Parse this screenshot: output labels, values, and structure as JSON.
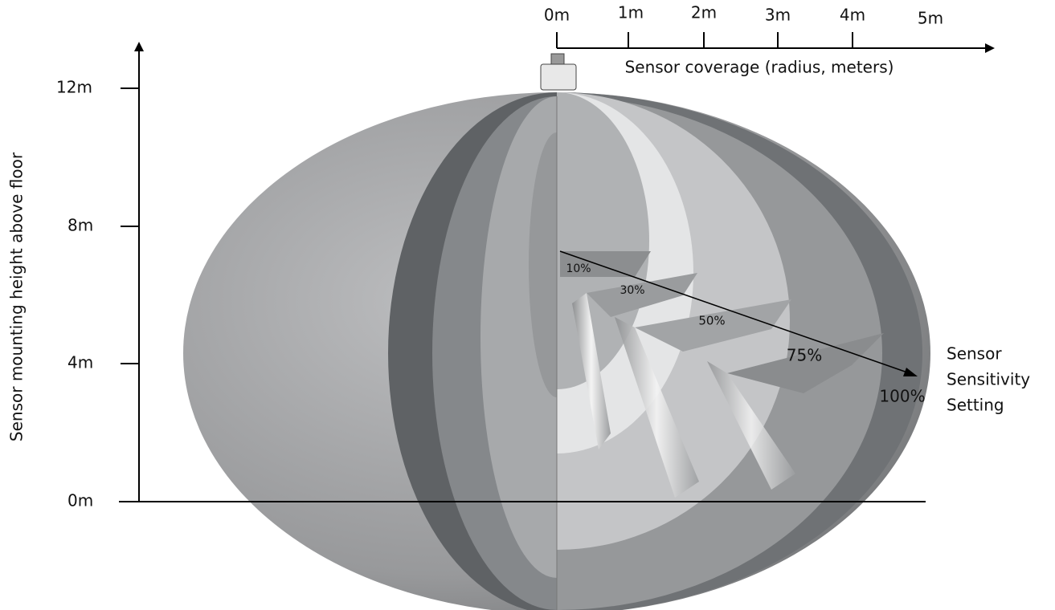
{
  "vertical_axis": {
    "label": "Sensor mounting height above floor",
    "ticks": [
      "12m",
      "8m",
      "4m",
      "0m"
    ]
  },
  "horizontal_axis": {
    "label": "Sensor coverage (radius, meters)",
    "ticks": [
      "0m",
      "1m",
      "2m",
      "3m",
      "4m",
      "5m"
    ]
  },
  "sensitivity": {
    "label_lines": [
      "Sensor",
      "Sensitivity",
      "Setting"
    ],
    "levels": [
      "10%",
      "30%",
      "50%",
      "75%",
      "100%"
    ]
  }
}
